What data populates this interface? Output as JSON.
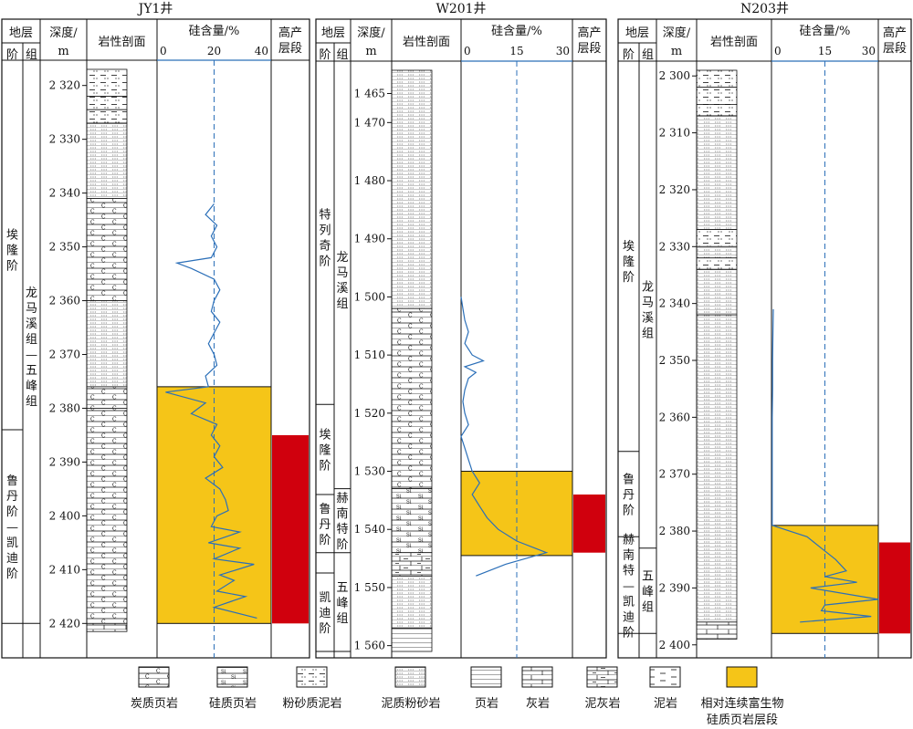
{
  "header_labels": {
    "stratum": "地层",
    "stage": "阶",
    "formation": "组",
    "depth_line1": "深度/",
    "depth_line2": "m",
    "lithology": "岩性剖面",
    "silica": "硅含量/%",
    "high_prod_line1": "高产",
    "high_prod_line2": "层段"
  },
  "wells": [
    {
      "name": "JY1井",
      "depth_range": [
        2317,
        2423
      ],
      "depth_ticks": [
        2320,
        2330,
        2340,
        2350,
        2360,
        2370,
        2380,
        2390,
        2400,
        2410,
        2420
      ],
      "silica_ticks": [
        "0",
        "20",
        "40"
      ],
      "silica_max": 40,
      "silica_ref": 20,
      "stages": [
        {
          "chars": [
            "埃",
            "隆",
            "阶"
          ],
          "top": 2317,
          "bottom": 2384
        },
        {
          "chars": [
            "鲁",
            "丹",
            "阶",
            "—",
            "凯",
            "迪",
            "阶"
          ],
          "top": 2384,
          "bottom": 2420
        }
      ],
      "formations": [
        {
          "chars": [
            "龙",
            "马",
            "溪",
            "组",
            "—",
            "五",
            "峰",
            "组"
          ],
          "top": 2317,
          "bottom": 2420
        }
      ],
      "lithology": [
        {
          "type": "silty-mudstone",
          "top": 2317,
          "bottom": 2322
        },
        {
          "type": "silty-mudstone",
          "top": 2322,
          "bottom": 2324.5
        },
        {
          "type": "silty-mudstone",
          "top": 2324.5,
          "bottom": 2327
        },
        {
          "type": "muddy-siltstone",
          "top": 2327,
          "bottom": 2341
        },
        {
          "type": "carbonaceous-shale",
          "top": 2341,
          "bottom": 2360
        },
        {
          "type": "muddy-siltstone",
          "top": 2360,
          "bottom": 2376
        },
        {
          "type": "carbonaceous-shale",
          "top": 2376,
          "bottom": 2380
        },
        {
          "type": "carbonaceous-shale",
          "top": 2380,
          "bottom": 2420
        },
        {
          "type": "limestone",
          "top": 2420,
          "bottom": 2421.5
        }
      ],
      "silica_curve": {
        "depth": [
          2342,
          2344,
          2346,
          2348,
          2350,
          2352,
          2353,
          2354,
          2356,
          2358,
          2360,
          2362,
          2364,
          2366,
          2368,
          2370,
          2372,
          2374,
          2376,
          2377,
          2379,
          2381,
          2383,
          2385,
          2387,
          2389,
          2391,
          2393,
          2395,
          2397,
          2399,
          2400,
          2402,
          2403,
          2405,
          2406,
          2408,
          2409,
          2411,
          2412,
          2414,
          2415,
          2417,
          2419
        ],
        "silica": [
          20,
          17,
          21,
          19,
          21,
          19,
          7,
          12,
          20,
          22,
          20,
          19,
          22,
          20,
          18,
          20,
          21,
          17,
          18,
          3,
          17,
          12,
          21,
          19,
          22,
          20,
          23,
          17,
          22,
          24,
          25,
          21,
          19,
          29,
          18,
          29,
          20,
          34,
          22,
          27,
          21,
          31,
          20,
          35
        ]
      },
      "rich_interval": [
        2376,
        2420
      ],
      "high_production": [
        2385,
        2420
      ]
    },
    {
      "name": "W201井",
      "depth_range": [
        1461,
        1561
      ],
      "depth_ticks": [
        1465,
        1470,
        1480,
        1490,
        1500,
        1510,
        1520,
        1530,
        1540,
        1550,
        1560
      ],
      "silica_ticks": [
        "0",
        "15",
        "30"
      ],
      "silica_max": 30,
      "silica_ref": 15,
      "stages": [
        {
          "chars": [
            "特",
            "列",
            "奇",
            "阶"
          ],
          "top": 1461,
          "bottom": 1518.5
        },
        {
          "chars": [
            "埃",
            "隆",
            "阶"
          ],
          "top": 1518.5,
          "bottom": 1534
        },
        {
          "chars": [
            "鲁",
            "丹",
            "阶"
          ],
          "top": 1534,
          "bottom": 1544
        },
        {
          "chars": [],
          "top": 1544,
          "bottom": 1547.5
        },
        {
          "chars": [
            "凯",
            "迪",
            "阶"
          ],
          "top": 1547.5,
          "bottom": 1561
        }
      ],
      "formations": [
        {
          "chars": [
            "龙",
            "马",
            "溪",
            "组"
          ],
          "top": 1461,
          "bottom": 1533
        },
        {
          "chars": [
            "赫",
            "南",
            "特",
            "阶"
          ],
          "top": 1533,
          "bottom": 1544
        },
        {
          "chars": [
            "五",
            "峰",
            "组"
          ],
          "top": 1544,
          "bottom": 1561
        }
      ],
      "lithology": [
        {
          "type": "muddy-siltstone",
          "top": 1461,
          "bottom": 1502
        },
        {
          "type": "carbonaceous-shale",
          "top": 1502,
          "bottom": 1533
        },
        {
          "type": "siliceous-shale",
          "top": 1533,
          "bottom": 1544
        },
        {
          "type": "muddy-limestone",
          "top": 1544,
          "bottom": 1548
        },
        {
          "type": "muddy-siltstone",
          "top": 1548,
          "bottom": 1557
        },
        {
          "type": "shale",
          "top": 1557,
          "bottom": 1561
        }
      ],
      "silica_curve": {
        "depth": [
          1500,
          1502,
          1504,
          1506,
          1508,
          1510,
          1511,
          1512,
          1513,
          1514,
          1516,
          1518,
          1520,
          1522,
          1524,
          1526,
          1528,
          1530,
          1532,
          1534,
          1536,
          1538,
          1540,
          1542,
          1544,
          1546,
          1548
        ],
        "silica": [
          0,
          0.5,
          1,
          2,
          1,
          3,
          6,
          1,
          4,
          2,
          1,
          0.5,
          1,
          2,
          0,
          1,
          2,
          3,
          5,
          3,
          5,
          7,
          10,
          15,
          23,
          12,
          4
        ]
      },
      "rich_interval": [
        1530,
        1544.5
      ],
      "high_production": [
        1534,
        1544
      ]
    },
    {
      "name": "N203井",
      "depth_range": [
        2299,
        2401
      ],
      "depth_ticks": [
        2300,
        2310,
        2320,
        2330,
        2340,
        2350,
        2360,
        2370,
        2380,
        2390,
        2400
      ],
      "silica_ticks": [
        "0",
        "15",
        "30"
      ],
      "silica_max": 30,
      "silica_ref": 15,
      "stages": [
        {
          "chars": [
            "埃",
            "隆",
            "阶"
          ],
          "top": 2299,
          "bottom": 2366
        },
        {
          "chars": [
            "鲁",
            "丹",
            "阶"
          ],
          "top": 2366,
          "bottom": 2381
        },
        {
          "chars": [
            "赫",
            "南",
            "特",
            "—",
            "凯",
            "迪",
            "阶"
          ],
          "top": 2381,
          "bottom": 2398
        }
      ],
      "formations": [
        {
          "chars": [
            "龙",
            "马",
            "溪",
            "组"
          ],
          "top": 2299,
          "bottom": 2383
        },
        {
          "chars": [
            "五",
            "峰",
            "组"
          ],
          "top": 2383,
          "bottom": 2398
        }
      ],
      "lithology": [
        {
          "type": "silty-mudstone",
          "top": 2299,
          "bottom": 2302
        },
        {
          "type": "silty-mudstone",
          "top": 2302,
          "bottom": 2305
        },
        {
          "type": "silty-mudstone",
          "top": 2305,
          "bottom": 2307
        },
        {
          "type": "muddy-siltstone",
          "top": 2307,
          "bottom": 2327
        },
        {
          "type": "silty-mudstone",
          "top": 2327,
          "bottom": 2330
        },
        {
          "type": "muddy-siltstone",
          "top": 2330,
          "bottom": 2332
        },
        {
          "type": "silty-mudstone",
          "top": 2332,
          "bottom": 2334
        },
        {
          "type": "muddy-siltstone",
          "top": 2334,
          "bottom": 2342
        },
        {
          "type": "muddy-siltstone",
          "top": 2342,
          "bottom": 2396
        },
        {
          "type": "limestone",
          "top": 2396,
          "bottom": 2399
        }
      ],
      "silica_curve": {
        "depth": [
          2341,
          2345,
          2350,
          2355,
          2360,
          2365,
          2370,
          2375,
          2379,
          2381,
          2383,
          2385,
          2387,
          2388,
          2389,
          2390,
          2392,
          2393,
          2394,
          2395,
          2396
        ],
        "silica": [
          0.5,
          0.4,
          0.3,
          0.3,
          0.2,
          0.2,
          0.2,
          0.2,
          0.2,
          10,
          14,
          18,
          21,
          15,
          24,
          11,
          30,
          15,
          14,
          28,
          8
        ]
      },
      "rich_interval": [
        2379,
        2398
      ],
      "high_production": [
        2382,
        2398
      ]
    }
  ],
  "legend": [
    {
      "type": "carbonaceous-shale",
      "label": "炭质页岩"
    },
    {
      "type": "siliceous-shale",
      "label": "硅质页岩"
    },
    {
      "type": "silty-mudstone",
      "label": "粉砂质泥岩"
    },
    {
      "type": "muddy-siltstone",
      "label": "泥质粉砂岩"
    },
    {
      "type": "shale",
      "label": "页岩"
    },
    {
      "type": "limestone",
      "label": "灰岩"
    },
    {
      "type": "muddy-limestone",
      "label": "泥灰岩"
    },
    {
      "type": "mudstone",
      "label": "泥岩"
    },
    {
      "type": "rich-interval",
      "label_line1": "相对连续富生物",
      "label_line2": "硅质页岩层段"
    }
  ],
  "colors": {
    "curve": "#2b6fb8",
    "rich_interval_fill": "#f5c518",
    "high_production_fill": "#d0000d",
    "ref_line": "#2b6fb8",
    "frame": "#111111"
  }
}
